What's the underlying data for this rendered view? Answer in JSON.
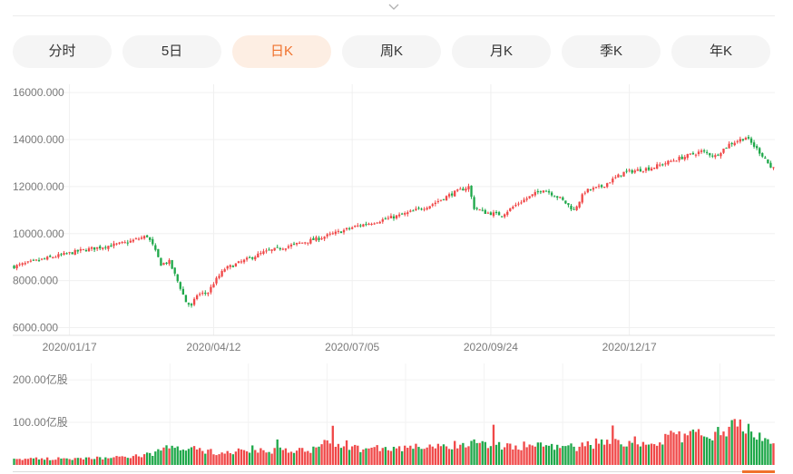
{
  "tabs": [
    {
      "label": "分时",
      "active": false
    },
    {
      "label": "5日",
      "active": false
    },
    {
      "label": "日K",
      "active": true
    },
    {
      "label": "周K",
      "active": false
    },
    {
      "label": "月K",
      "active": false
    },
    {
      "label": "季K",
      "active": false
    },
    {
      "label": "年K",
      "active": false
    }
  ],
  "colors": {
    "up": "#f04848",
    "down": "#1fa84a",
    "active_tab": "#f0712c",
    "active_tab_bg": "#fdeee3"
  },
  "chart_data": [
    {
      "type": "candlestick",
      "y_tick_labels": [
        "16000.000",
        "14000.000",
        "12000.000",
        "10000.000",
        "8000.000",
        "6000.000"
      ],
      "y_ticks": [
        16000,
        14000,
        12000,
        10000,
        8000,
        6000
      ],
      "ylim": [
        5750,
        16200
      ],
      "x_tick_labels": [
        "2020/01/17",
        "2020/04/12",
        "2020/07/05",
        "2020/09/24",
        "2020/12/17"
      ],
      "x_tick_index": [
        20,
        72,
        122,
        172,
        222
      ],
      "n": 275,
      "close_anchors": [
        [
          0,
          8600
        ],
        [
          10,
          8900
        ],
        [
          25,
          9300
        ],
        [
          40,
          9600
        ],
        [
          48,
          9900
        ],
        [
          50,
          9500
        ],
        [
          53,
          8700
        ],
        [
          56,
          8800
        ],
        [
          60,
          7700
        ],
        [
          62,
          7100
        ],
        [
          64,
          6900
        ],
        [
          66,
          7400
        ],
        [
          70,
          7500
        ],
        [
          72,
          7900
        ],
        [
          76,
          8500
        ],
        [
          82,
          8800
        ],
        [
          90,
          9200
        ],
        [
          100,
          9500
        ],
        [
          110,
          9800
        ],
        [
          118,
          10100
        ],
        [
          123,
          10300
        ],
        [
          130,
          10500
        ],
        [
          140,
          10800
        ],
        [
          150,
          11200
        ],
        [
          158,
          11700
        ],
        [
          164,
          12000
        ],
        [
          166,
          11100
        ],
        [
          170,
          10900
        ],
        [
          176,
          10800
        ],
        [
          182,
          11300
        ],
        [
          188,
          11700
        ],
        [
          191,
          11900
        ],
        [
          197,
          11500
        ],
        [
          202,
          11000
        ],
        [
          206,
          11800
        ],
        [
          212,
          12000
        ],
        [
          220,
          12600
        ],
        [
          230,
          12800
        ],
        [
          240,
          13200
        ],
        [
          248,
          13500
        ],
        [
          253,
          13300
        ],
        [
          258,
          13800
        ],
        [
          264,
          14100
        ],
        [
          268,
          13600
        ],
        [
          271,
          13200
        ],
        [
          273,
          12800
        ],
        [
          275,
          13000
        ]
      ]
    },
    {
      "type": "bar",
      "y_tick_labels": [
        "200.00亿股",
        "100.00亿股"
      ],
      "y_ticks": [
        200,
        100
      ],
      "ylim": [
        0,
        230
      ],
      "volume_anchors": [
        [
          0,
          14
        ],
        [
          20,
          15
        ],
        [
          40,
          18
        ],
        [
          50,
          26
        ],
        [
          56,
          42
        ],
        [
          64,
          40
        ],
        [
          70,
          30
        ],
        [
          95,
          33
        ],
        [
          110,
          35
        ],
        [
          113,
          60
        ],
        [
          118,
          40
        ],
        [
          150,
          40
        ],
        [
          166,
          50
        ],
        [
          200,
          40
        ],
        [
          215,
          55
        ],
        [
          230,
          58
        ],
        [
          245,
          72
        ],
        [
          252,
          70
        ],
        [
          260,
          92
        ],
        [
          265,
          88
        ],
        [
          272,
          62
        ],
        [
          275,
          60
        ]
      ]
    }
  ]
}
